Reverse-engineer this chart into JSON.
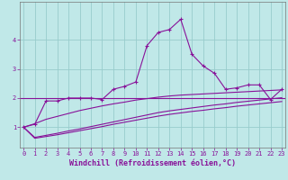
{
  "xlabel": "Windchill (Refroidissement éolien,°C)",
  "background_color": "#c0e8e8",
  "grid_color": "#98cccc",
  "line_color": "#881199",
  "x_values": [
    0,
    1,
    2,
    3,
    4,
    5,
    6,
    7,
    8,
    9,
    10,
    11,
    12,
    13,
    14,
    15,
    16,
    17,
    18,
    19,
    20,
    21,
    22,
    23
  ],
  "line1_y": [
    1.0,
    1.1,
    1.9,
    1.9,
    2.0,
    2.0,
    2.0,
    1.95,
    2.3,
    2.4,
    2.55,
    3.8,
    4.25,
    4.35,
    4.7,
    3.5,
    3.1,
    2.85,
    2.3,
    2.35,
    2.45,
    2.45,
    1.95,
    2.3
  ],
  "line2_y": [
    1.0,
    1.12,
    1.27,
    1.37,
    1.47,
    1.57,
    1.65,
    1.73,
    1.8,
    1.86,
    1.93,
    1.98,
    2.03,
    2.07,
    2.1,
    2.12,
    2.14,
    2.16,
    2.18,
    2.2,
    2.22,
    2.24,
    2.26,
    2.28
  ],
  "line3_y": [
    1.0,
    0.65,
    0.72,
    0.79,
    0.87,
    0.94,
    1.02,
    1.1,
    1.18,
    1.26,
    1.34,
    1.42,
    1.5,
    1.56,
    1.61,
    1.66,
    1.71,
    1.76,
    1.8,
    1.85,
    1.89,
    1.93,
    1.97,
    2.01
  ],
  "line4_y": [
    1.0,
    0.62,
    0.68,
    0.74,
    0.81,
    0.88,
    0.95,
    1.02,
    1.1,
    1.17,
    1.24,
    1.31,
    1.38,
    1.44,
    1.49,
    1.54,
    1.58,
    1.63,
    1.67,
    1.72,
    1.76,
    1.8,
    1.84,
    1.88
  ],
  "flat_y": 2.0,
  "ylim": [
    0.3,
    5.3
  ],
  "xlim": [
    -0.3,
    23.3
  ],
  "yticks": [
    1,
    2,
    3,
    4
  ],
  "xticks": [
    0,
    1,
    2,
    3,
    4,
    5,
    6,
    7,
    8,
    9,
    10,
    11,
    12,
    13,
    14,
    15,
    16,
    17,
    18,
    19,
    20,
    21,
    22,
    23
  ],
  "tick_fontsize": 5.0,
  "xlabel_fontsize": 6.0,
  "figsize": [
    3.2,
    2.0
  ],
  "dpi": 100
}
